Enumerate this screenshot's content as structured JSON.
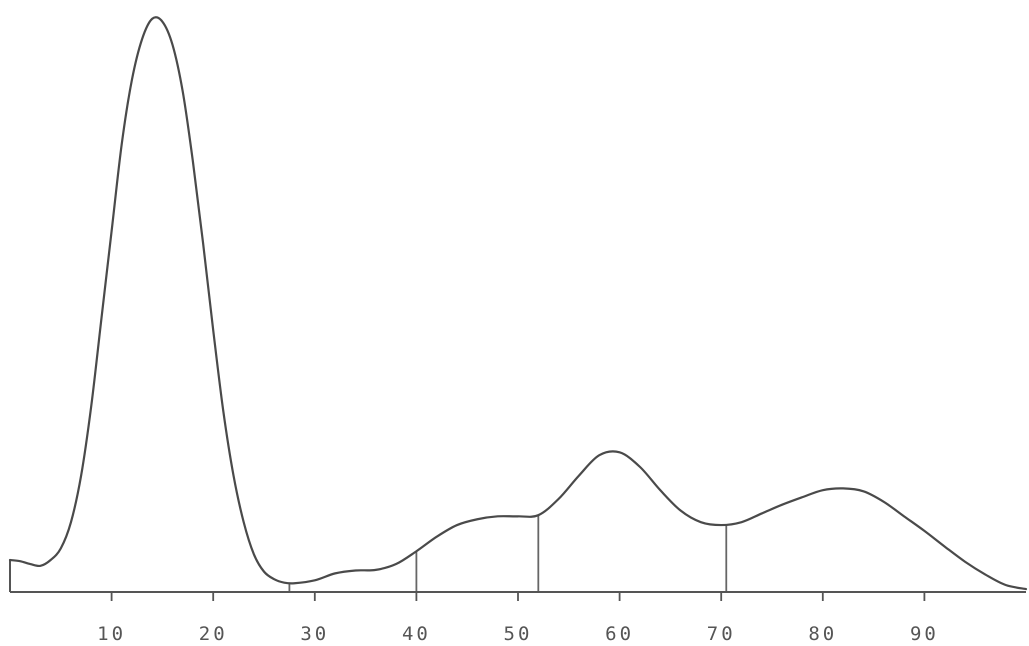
{
  "chart_data": {
    "type": "line",
    "title": "",
    "xlabel": "",
    "ylabel": "",
    "xlim": [
      0,
      100
    ],
    "ylim": [
      0,
      100
    ],
    "grid": false,
    "x_ticks": [
      10,
      20,
      30,
      40,
      50,
      60,
      70,
      80,
      90
    ],
    "x_tick_labels": [
      "10",
      "20",
      "30",
      "40",
      "50",
      "60",
      "70",
      "80",
      "90"
    ],
    "series": [
      {
        "points": [
          [
            0,
            5.5
          ],
          [
            1,
            5.3
          ],
          [
            2,
            4.8
          ],
          [
            3,
            4.5
          ],
          [
            4,
            5.5
          ],
          [
            5,
            7.5
          ],
          [
            6,
            12
          ],
          [
            7,
            20
          ],
          [
            8,
            32
          ],
          [
            9,
            47
          ],
          [
            10,
            62
          ],
          [
            11,
            77
          ],
          [
            12,
            88
          ],
          [
            13,
            95
          ],
          [
            14,
            98.5
          ],
          [
            15,
            98
          ],
          [
            16,
            94
          ],
          [
            17,
            86
          ],
          [
            18,
            74
          ],
          [
            19,
            60
          ],
          [
            20,
            45
          ],
          [
            21,
            31
          ],
          [
            22,
            20
          ],
          [
            23,
            12
          ],
          [
            24,
            6.5
          ],
          [
            25,
            3.5
          ],
          [
            26,
            2.2
          ],
          [
            27,
            1.6
          ],
          [
            28,
            1.5
          ],
          [
            30,
            2.0
          ],
          [
            32,
            3.2
          ],
          [
            34,
            3.7
          ],
          [
            36,
            3.8
          ],
          [
            38,
            4.8
          ],
          [
            40,
            7.0
          ],
          [
            42,
            9.5
          ],
          [
            44,
            11.5
          ],
          [
            46,
            12.5
          ],
          [
            48,
            13.0
          ],
          [
            50,
            13.0
          ],
          [
            52,
            13.2
          ],
          [
            54,
            16.0
          ],
          [
            56,
            20.0
          ],
          [
            58,
            23.5
          ],
          [
            60,
            24.0
          ],
          [
            62,
            21.5
          ],
          [
            64,
            17.5
          ],
          [
            66,
            14.0
          ],
          [
            68,
            12.0
          ],
          [
            70,
            11.5
          ],
          [
            72,
            12.0
          ],
          [
            74,
            13.5
          ],
          [
            76,
            15.0
          ],
          [
            78,
            16.3
          ],
          [
            80,
            17.5
          ],
          [
            82,
            17.8
          ],
          [
            84,
            17.3
          ],
          [
            86,
            15.5
          ],
          [
            88,
            13.0
          ],
          [
            90,
            10.5
          ],
          [
            92,
            7.8
          ],
          [
            94,
            5.2
          ],
          [
            96,
            3.0
          ],
          [
            98,
            1.2
          ],
          [
            100,
            0.5
          ]
        ]
      }
    ],
    "dividers_x": [
      27.5,
      40,
      52,
      70.5
    ]
  }
}
